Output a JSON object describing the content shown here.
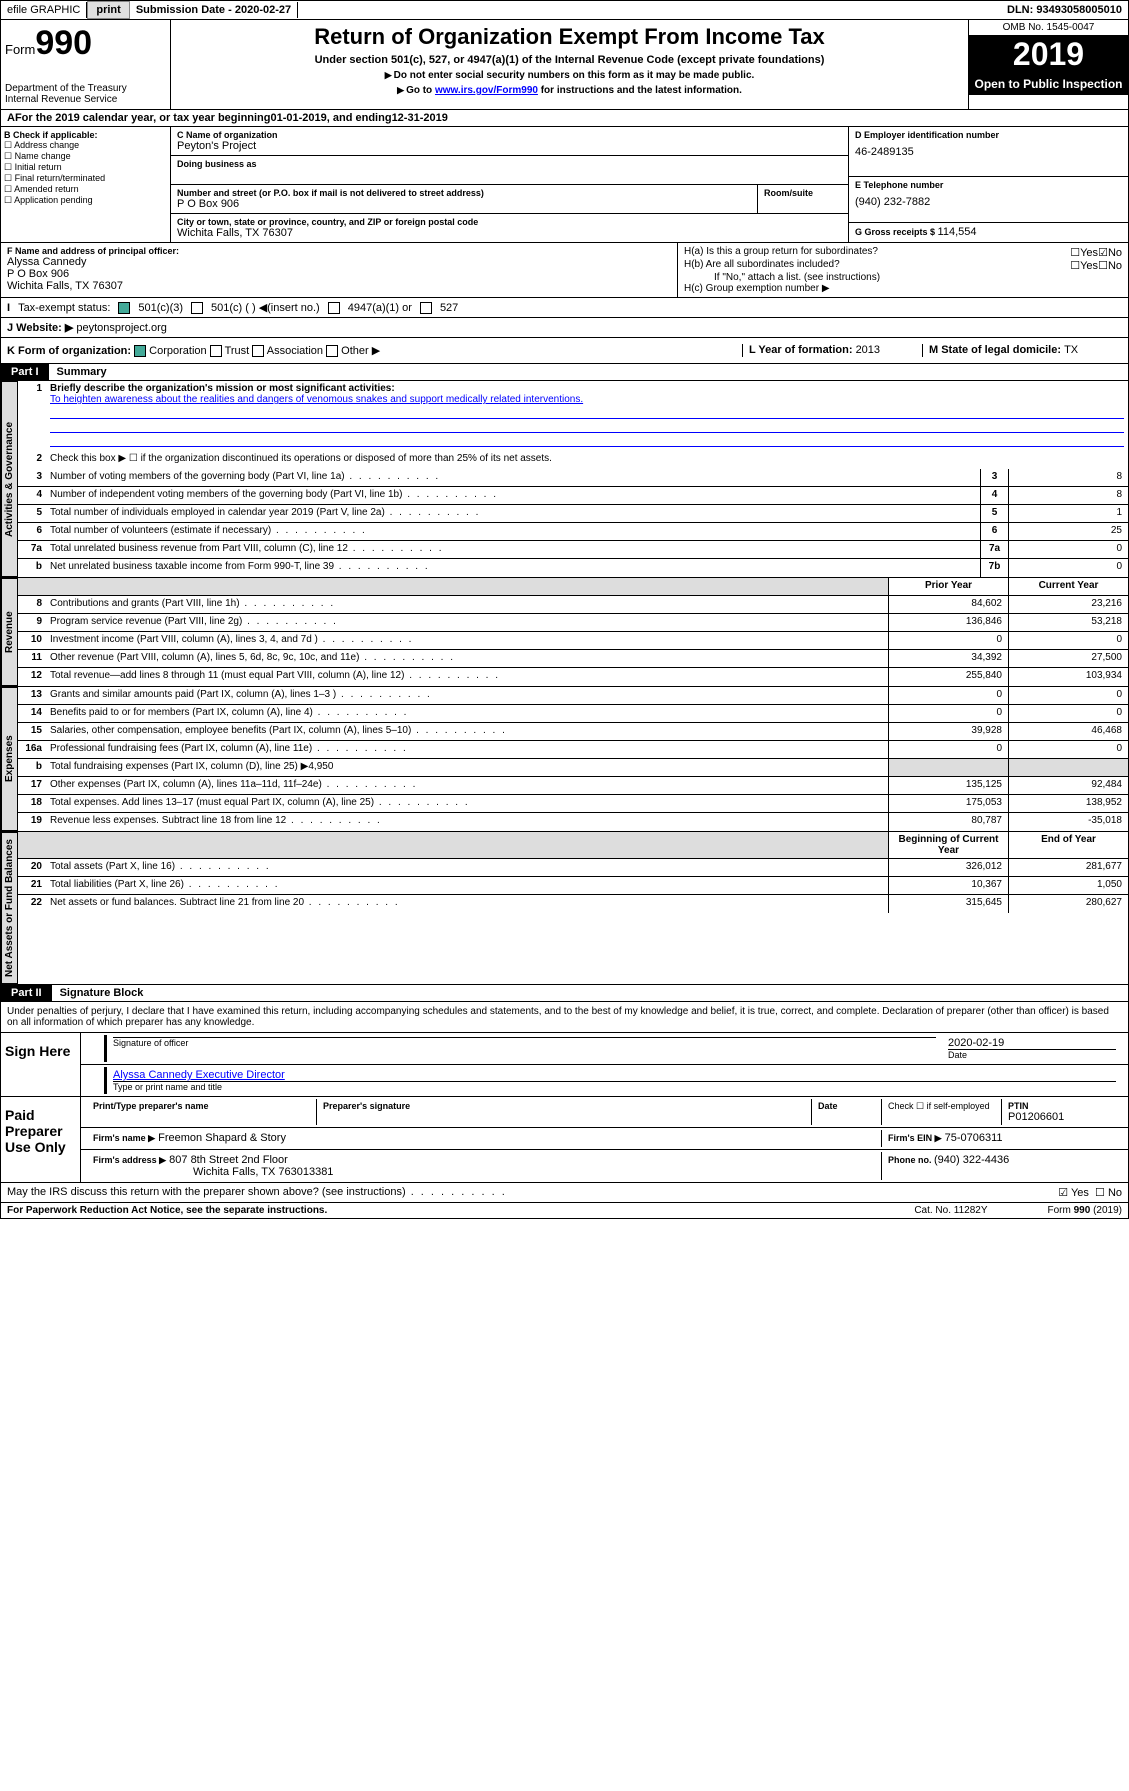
{
  "topbar": {
    "efile": "efile GRAPHIC",
    "print": "print",
    "sub_label": "Submission Date - ",
    "sub_date": "2020-02-27",
    "dln_label": "DLN: ",
    "dln": "93493058005010"
  },
  "header": {
    "form_pre": "Form",
    "form_num": "990",
    "dept1": "Department of the Treasury",
    "dept2": "Internal Revenue Service",
    "title": "Return of Organization Exempt From Income Tax",
    "sub1": "Under section 501(c), 527, or 4947(a)(1) of the Internal Revenue Code (except private foundations)",
    "sub2": "Do not enter social security numbers on this form as it may be made public.",
    "sub3_pre": "Go to ",
    "sub3_link": "www.irs.gov/Form990",
    "sub3_post": " for instructions and the latest information.",
    "omb": "OMB No. 1545-0047",
    "year": "2019",
    "open": "Open to Public Inspection"
  },
  "period": {
    "text_pre": "For the 2019 calendar year, or tax year beginning ",
    "begin": "01-01-2019",
    "mid": " , and ending ",
    "end": "12-31-2019"
  },
  "boxB": {
    "hdr": "B Check if applicable:",
    "items": [
      "Address change",
      "Name change",
      "Initial return",
      "Final return/terminated",
      "Amended return",
      "Application pending"
    ]
  },
  "boxC": {
    "name_lbl": "C Name of organization",
    "name": "Peyton's Project",
    "dba_lbl": "Doing business as",
    "addr_lbl": "Number and street (or P.O. box if mail is not delivered to street address)",
    "suite_lbl": "Room/suite",
    "addr": "P O Box 906",
    "city_lbl": "City or town, state or province, country, and ZIP or foreign postal code",
    "city": "Wichita Falls, TX  76307"
  },
  "boxD": {
    "lbl": "D Employer identification number",
    "val": "46-2489135"
  },
  "boxE": {
    "lbl": "E Telephone number",
    "val": "(940) 232-7882"
  },
  "boxG": {
    "lbl": "G Gross receipts $ ",
    "val": "114,554"
  },
  "boxF": {
    "lbl": "F  Name and address of principal officer:",
    "name": "Alyssa Cannedy",
    "addr1": "P O Box 906",
    "addr2": "Wichita Falls, TX  76307"
  },
  "boxH": {
    "a": "H(a)  Is this a group return for subordinates?",
    "b": "H(b)  Are all subordinates included?",
    "b_note": "If \"No,\" attach a list. (see instructions)",
    "c": "H(c)  Group exemption number ▶",
    "yes": "Yes",
    "no": "No"
  },
  "boxI": {
    "lbl": "Tax-exempt status:",
    "o1": "501(c)(3)",
    "o2": "501(c) (  ) ◀(insert no.)",
    "o3": "4947(a)(1) or",
    "o4": "527"
  },
  "boxJ": {
    "lbl": "J   Website: ▶",
    "val": "peytonsproject.org"
  },
  "boxK": {
    "lbl": "K Form of organization:",
    "o1": "Corporation",
    "o2": "Trust",
    "o3": "Association",
    "o4": "Other ▶"
  },
  "boxL": {
    "lbl": "L Year of formation: ",
    "val": "2013"
  },
  "boxM": {
    "lbl": "M State of legal domicile: ",
    "val": "TX"
  },
  "part1": {
    "hdr": "Part I",
    "title": "Summary"
  },
  "vtabs": {
    "gov": "Activities & Governance",
    "rev": "Revenue",
    "exp": "Expenses",
    "net": "Net Assets or Fund Balances"
  },
  "lines_gov": [
    {
      "n": "1",
      "t": "Briefly describe the organization's mission or most significant activities:",
      "mission": "To heighten awareness about the realities and dangers of venomous snakes and support medically related interventions."
    },
    {
      "n": "2",
      "t": "Check this box ▶ ☐  if the organization discontinued its operations or disposed of more than 25% of its net assets."
    },
    {
      "n": "3",
      "t": "Number of voting members of the governing body (Part VI, line 1a)",
      "k": "3",
      "v": "8"
    },
    {
      "n": "4",
      "t": "Number of independent voting members of the governing body (Part VI, line 1b)",
      "k": "4",
      "v": "8"
    },
    {
      "n": "5",
      "t": "Total number of individuals employed in calendar year 2019 (Part V, line 2a)",
      "k": "5",
      "v": "1"
    },
    {
      "n": "6",
      "t": "Total number of volunteers (estimate if necessary)",
      "k": "6",
      "v": "25"
    },
    {
      "n": "7a",
      "t": "Total unrelated business revenue from Part VIII, column (C), line 12",
      "k": "7a",
      "v": "0"
    },
    {
      "n": "b",
      "t": "Net unrelated business taxable income from Form 990-T, line 39",
      "k": "7b",
      "v": "0"
    }
  ],
  "col_hdrs": {
    "prior": "Prior Year",
    "current": "Current Year"
  },
  "lines_rev": [
    {
      "n": "8",
      "t": "Contributions and grants (Part VIII, line 1h)",
      "p": "84,602",
      "c": "23,216"
    },
    {
      "n": "9",
      "t": "Program service revenue (Part VIII, line 2g)",
      "p": "136,846",
      "c": "53,218"
    },
    {
      "n": "10",
      "t": "Investment income (Part VIII, column (A), lines 3, 4, and 7d )",
      "p": "0",
      "c": "0"
    },
    {
      "n": "11",
      "t": "Other revenue (Part VIII, column (A), lines 5, 6d, 8c, 9c, 10c, and 11e)",
      "p": "34,392",
      "c": "27,500"
    },
    {
      "n": "12",
      "t": "Total revenue—add lines 8 through 11 (must equal Part VIII, column (A), line 12)",
      "p": "255,840",
      "c": "103,934"
    }
  ],
  "lines_exp": [
    {
      "n": "13",
      "t": "Grants and similar amounts paid (Part IX, column (A), lines 1–3 )",
      "p": "0",
      "c": "0"
    },
    {
      "n": "14",
      "t": "Benefits paid to or for members (Part IX, column (A), line 4)",
      "p": "0",
      "c": "0"
    },
    {
      "n": "15",
      "t": "Salaries, other compensation, employee benefits (Part IX, column (A), lines 5–10)",
      "p": "39,928",
      "c": "46,468"
    },
    {
      "n": "16a",
      "t": "Professional fundraising fees (Part IX, column (A), line 11e)",
      "p": "0",
      "c": "0"
    },
    {
      "n": "b",
      "t": "Total fundraising expenses (Part IX, column (D), line 25) ▶4,950",
      "shade": true
    },
    {
      "n": "17",
      "t": "Other expenses (Part IX, column (A), lines 11a–11d, 11f–24e)",
      "p": "135,125",
      "c": "92,484"
    },
    {
      "n": "18",
      "t": "Total expenses. Add lines 13–17 (must equal Part IX, column (A), line 25)",
      "p": "175,053",
      "c": "138,952"
    },
    {
      "n": "19",
      "t": "Revenue less expenses. Subtract line 18 from line 12",
      "p": "80,787",
      "c": "-35,018"
    }
  ],
  "col_hdrs2": {
    "begin": "Beginning of Current Year",
    "end": "End of Year"
  },
  "lines_net": [
    {
      "n": "20",
      "t": "Total assets (Part X, line 16)",
      "p": "326,012",
      "c": "281,677"
    },
    {
      "n": "21",
      "t": "Total liabilities (Part X, line 26)",
      "p": "10,367",
      "c": "1,050"
    },
    {
      "n": "22",
      "t": "Net assets or fund balances. Subtract line 21 from line 20",
      "p": "315,645",
      "c": "280,627"
    }
  ],
  "part2": {
    "hdr": "Part II",
    "title": "Signature Block"
  },
  "sig": {
    "decl": "Under penalties of perjury, I declare that I have examined this return, including accompanying schedules and statements, and to the best of my knowledge and belief, it is true, correct, and complete. Declaration of preparer (other than officer) is based on all information of which preparer has any knowledge.",
    "sign_here": "Sign Here",
    "sig_officer": "Signature of officer",
    "date": "Date",
    "sig_date": "2020-02-19",
    "officer_name": "Alyssa Cannedy  Executive Director",
    "name_title": "Type or print name and title",
    "paid": "Paid Preparer Use Only",
    "prep_name_lbl": "Print/Type preparer's name",
    "prep_sig_lbl": "Preparer's signature",
    "prep_date_lbl": "Date",
    "self_emp": "Check ☐  if self-employed",
    "ptin_lbl": "PTIN",
    "ptin": "P01206601",
    "firm_name_lbl": "Firm's name    ▶",
    "firm_name": "Freemon Shapard & Story",
    "firm_ein_lbl": "Firm's EIN ▶",
    "firm_ein": "75-0706311",
    "firm_addr_lbl": "Firm's address ▶",
    "firm_addr1": "807 8th Street 2nd Floor",
    "firm_addr2": "Wichita Falls, TX  763013381",
    "phone_lbl": "Phone no. ",
    "phone": "(940) 322-4436",
    "discuss": "May the IRS discuss this return with the preparer shown above? (see instructions)",
    "yes": "Yes",
    "no": "No"
  },
  "footer": {
    "pra": "For Paperwork Reduction Act Notice, see the separate instructions.",
    "cat": "Cat. No. 11282Y",
    "form": "Form 990 (2019)"
  }
}
